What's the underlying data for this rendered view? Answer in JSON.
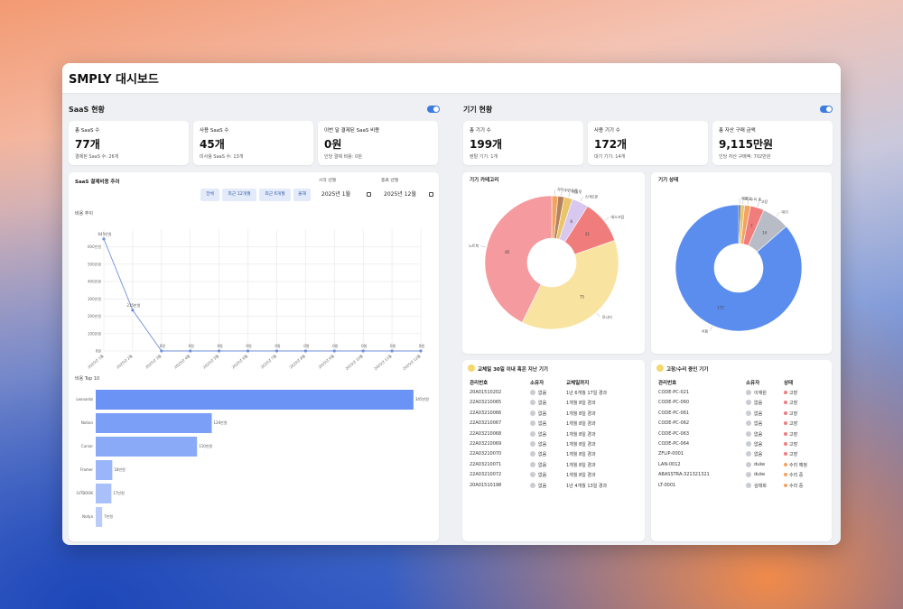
{
  "header": {
    "title": "SMPLY 대시보드"
  },
  "saas": {
    "title": "SaaS 현황",
    "cards": [
      {
        "label": "총 SaaS 수",
        "value": "77개",
        "sub": "결제된 SaaS 수: 26개"
      },
      {
        "label": "사용 SaaS 수",
        "value": "45개",
        "sub": "미사용 SaaS 수: 13개"
      },
      {
        "label": "이번 달 결제된 SaaS 비용",
        "value": "0원",
        "sub": "인당 결제 비용: 0원"
      }
    ],
    "trend": {
      "title": "SaaS 결제비용 추이",
      "filters": [
        "전체",
        "최근 12개월",
        "최근 6개월",
        "올해"
      ],
      "start_label": "시작 년월",
      "start": "2025년 1월",
      "end_label": "종료 년월",
      "end": "2025년 12월",
      "chart_data": {
        "type": "line",
        "title": "비용 추이",
        "categories": [
          "2025년 1월",
          "2025년 2월",
          "2025년 3월",
          "2025년 4월",
          "2025년 5월",
          "2025년 6월",
          "2025년 7월",
          "2025년 8월",
          "2025년 9월",
          "2025년 10월",
          "2025년 11월",
          "2025년 12월"
        ],
        "values": [
          645,
          235,
          0,
          0,
          0,
          0,
          0,
          0,
          0,
          0,
          0,
          0
        ],
        "value_labels": [
          "645만원",
          "235만원",
          "0원",
          "0원",
          "0원",
          "0원",
          "0원",
          "0원",
          "0원",
          "0원",
          "0원",
          "0원"
        ],
        "ylim": [
          0,
          660
        ],
        "yticks": [
          {
            "value": 0,
            "label": "0원"
          },
          {
            "value": 100,
            "label": "100만원"
          },
          {
            "value": 200,
            "label": "200만원"
          },
          {
            "value": 300,
            "label": "300만원"
          },
          {
            "value": 400,
            "label": "400만원"
          },
          {
            "value": 500,
            "label": "500만원"
          },
          {
            "value": 600,
            "label": "600만원"
          }
        ],
        "color": "#6f8fd8",
        "grid": true
      }
    },
    "top10": {
      "chart_data": {
        "type": "bar",
        "orientation": "horizontal",
        "title": "비용 Top 10",
        "categories": [
          "Leonardo",
          "Notion",
          "Cursor",
          "Framer",
          "GITBOOK",
          "Notya"
        ],
        "values": [
          345,
          126,
          110,
          18,
          17,
          7
        ],
        "value_labels": [
          "345만원",
          "126만원",
          "110만원",
          "18만원",
          "17만원",
          "7만원"
        ],
        "xlim": [
          0,
          350
        ],
        "colors": [
          "#6b93f6",
          "#7b9ff7",
          "#8aaaf8",
          "#9ab5f9",
          "#aac0fa",
          "#b9ccfb"
        ]
      }
    }
  },
  "devices": {
    "title": "기기 현황",
    "cards": [
      {
        "label": "총 기기 수",
        "value": "199개",
        "sub": "렌탈 기기: 1개"
      },
      {
        "label": "사용 기기 수",
        "value": "172개",
        "sub": "대기 기기: 14개"
      },
      {
        "label": "총 자산 구매 금액",
        "value": "9,115만원",
        "sub": "인당 자산 구매액: 702만원"
      }
    ],
    "category": {
      "chart_data": {
        "type": "pie",
        "title": "기기 카테고리",
        "categories": [
          "기타",
          "주변기기",
          "태블릿",
          "스마트폰",
          "데스크탑",
          "모니터",
          "노트북"
        ],
        "values": [
          3,
          3,
          4,
          8,
          21,
          75,
          85
        ],
        "colors": [
          "#f4a261",
          "#b5835a",
          "#e9c46a",
          "#d8c8f0",
          "#f07c7c",
          "#f9e3a1",
          "#f59a9e"
        ]
      }
    },
    "status": {
      "chart_data": {
        "type": "pie",
        "title": "기기 상태",
        "categories": [
          "폐기",
          "분실",
          "수리 중",
          "고장",
          "대기",
          "사용"
        ],
        "values": [
          1,
          2,
          3,
          7,
          14,
          172
        ],
        "colors": [
          "#444444",
          "#e9c46a",
          "#f4a261",
          "#f07c7c",
          "#b7bcc6",
          "#5b8def"
        ]
      }
    }
  },
  "tables": [
    {
      "title": "교체일 30일 이내 혹은 지난 기기",
      "columns": [
        "관리번호",
        "소유자",
        "교체일까지"
      ],
      "rows": [
        [
          "20A01510202",
          "없음",
          "1년 6개월 17일 경과"
        ],
        [
          "22A03210065",
          "없음",
          "1개월 8일 경과"
        ],
        [
          "22A03210066",
          "없음",
          "1개월 8일 경과"
        ],
        [
          "22A03210067",
          "없음",
          "1개월 8일 경과"
        ],
        [
          "22A03210068",
          "없음",
          "1개월 8일 경과"
        ],
        [
          "22A03210069",
          "없음",
          "1개월 8일 경과"
        ],
        [
          "22A03210070",
          "없음",
          "1개월 8일 경과"
        ],
        [
          "22A03210071",
          "없음",
          "1개월 8일 경과"
        ],
        [
          "22A03210072",
          "없음",
          "1개월 8일 경과"
        ],
        [
          "20A01510198",
          "없음",
          "1년 4개월 13일 경과"
        ]
      ]
    },
    {
      "title": "고장/수리 중인 기기",
      "columns": [
        "관리번호",
        "소유자",
        "상태"
      ],
      "rows": [
        [
          "CODE-PC-021",
          "이재원",
          "고장"
        ],
        [
          "CODE-PC-060",
          "없음",
          "고장"
        ],
        [
          "CODE-PC-061",
          "없음",
          "고장"
        ],
        [
          "CODE-PC-062",
          "없음",
          "고장"
        ],
        [
          "CODE-PC-063",
          "없음",
          "고장"
        ],
        [
          "CODE-PC-064",
          "없음",
          "고장"
        ],
        [
          "ZFLIP-0001",
          "없음",
          "고장"
        ],
        [
          "LAN-0012",
          "duke",
          "수리 예정"
        ],
        [
          "ABASSTRA-321321321",
          "duke",
          "수리 중"
        ],
        [
          "LT-0001",
          "김태희",
          "수리 중"
        ]
      ]
    }
  ]
}
